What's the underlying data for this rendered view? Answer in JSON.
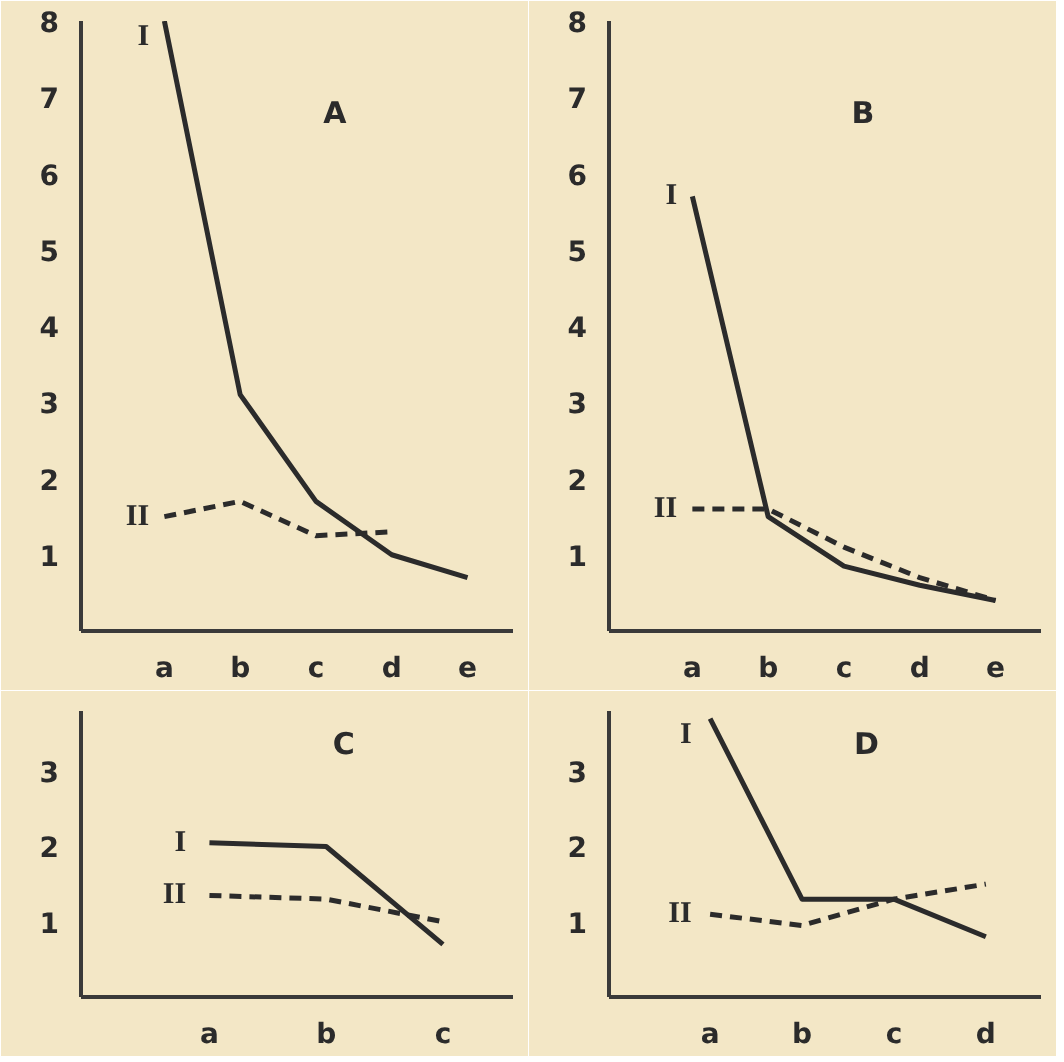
{
  "chart_data": [
    {
      "type": "line",
      "title": "A",
      "categories": [
        "a",
        "b",
        "c",
        "d",
        "e"
      ],
      "ylim": [
        0,
        8
      ],
      "yticks": [
        1,
        2,
        3,
        4,
        5,
        6,
        7,
        8
      ],
      "grid": false,
      "marker": "none",
      "series": [
        {
          "name": "I",
          "color": "#2b2b2b",
          "line_style": "solid",
          "values": [
            8,
            3.1,
            1.7,
            1.0,
            0.7
          ]
        },
        {
          "name": "II",
          "color": "#2b2b2b",
          "line_style": "dashed",
          "values": [
            1.5,
            1.7,
            1.25,
            1.3,
            null
          ]
        }
      ]
    },
    {
      "type": "line",
      "title": "B",
      "categories": [
        "a",
        "b",
        "c",
        "d",
        "e"
      ],
      "ylim": [
        0,
        8
      ],
      "yticks": [
        1,
        2,
        3,
        4,
        5,
        6,
        7,
        8
      ],
      "grid": false,
      "marker": "none",
      "series": [
        {
          "name": "I",
          "color": "#2b2b2b",
          "line_style": "solid",
          "values": [
            5.7,
            1.5,
            0.85,
            0.6,
            0.4
          ]
        },
        {
          "name": "II",
          "color": "#2b2b2b",
          "line_style": "dashed",
          "values": [
            1.6,
            1.6,
            1.1,
            0.7,
            0.4
          ]
        }
      ]
    },
    {
      "type": "line",
      "title": "C",
      "categories": [
        "a",
        "b",
        "c"
      ],
      "ylim": [
        0,
        3.8
      ],
      "yticks": [
        1,
        2,
        3
      ],
      "grid": false,
      "marker": "none",
      "series": [
        {
          "name": "I",
          "color": "#2b2b2b",
          "line_style": "solid",
          "values": [
            2.05,
            2.0,
            0.7
          ]
        },
        {
          "name": "II",
          "color": "#2b2b2b",
          "line_style": "dashed",
          "values": [
            1.35,
            1.3,
            1.0
          ]
        }
      ]
    },
    {
      "type": "line",
      "title": "D",
      "categories": [
        "a",
        "b",
        "c",
        "d"
      ],
      "ylim": [
        0,
        3.8
      ],
      "yticks": [
        1,
        2,
        3
      ],
      "grid": false,
      "marker": "none",
      "series": [
        {
          "name": "I",
          "color": "#2b2b2b",
          "line_style": "solid",
          "values": [
            3.7,
            1.3,
            1.3,
            0.8
          ]
        },
        {
          "name": "II",
          "color": "#2b2b2b",
          "line_style": "dashed",
          "values": [
            1.1,
            0.95,
            1.3,
            1.5
          ]
        }
      ]
    }
  ]
}
